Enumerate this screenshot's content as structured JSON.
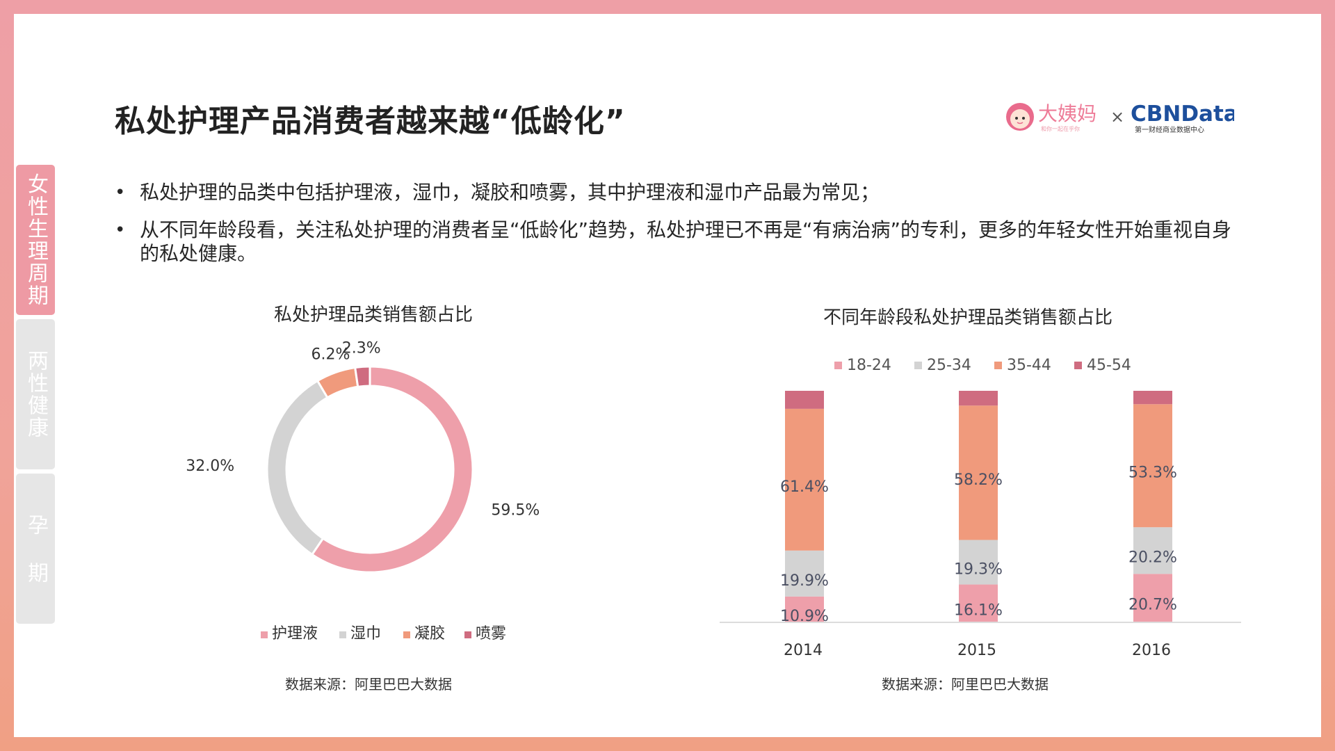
{
  "page": {
    "title": "私处护理产品消费者越来越“低龄化”",
    "logo": {
      "brand_left": "大姨妈",
      "tagline_left": "和你一起在乎你",
      "times": "×",
      "brand_right": "CBNData",
      "tagline_right": "第一财经商业数据中心"
    },
    "bullets": [
      "私处护理的品类中包括护理液，湿巾，凝胶和喷雾，其中护理液和湿巾产品最为常见；",
      "从不同年龄段看，关注私处护理的消费者呈“低龄化”趋势，私处护理已不再是“有病治病”的专利，更多的年轻女性开始重视自身的私处健康。"
    ],
    "bullet_marker": "•",
    "side_tabs": [
      {
        "label": "女性生理周期",
        "active": true
      },
      {
        "label": "两性健康",
        "active": false
      },
      {
        "label": "孕 期",
        "active": false
      }
    ],
    "colors": {
      "pink": "#ee9faa",
      "grey": "#d3d3d3",
      "orange": "#f09a7c",
      "rose": "#cf6c80"
    }
  },
  "chart_data": [
    {
      "type": "pie",
      "style": "donut",
      "title": "私处护理品类销售额占比",
      "labels": [
        "护理液",
        "湿巾",
        "凝胶",
        "喷雾"
      ],
      "values": [
        59.5,
        32.0,
        6.2,
        2.3
      ],
      "value_labels": [
        "59.5%",
        "32.0%",
        "6.2%",
        "2.3%"
      ],
      "colors": [
        "#ee9faa",
        "#d3d3d3",
        "#f09a7c",
        "#cf6c80"
      ],
      "legend_position": "bottom",
      "source": "数据来源：阿里巴巴大数据"
    },
    {
      "type": "bar",
      "stacked": true,
      "title": "不同年龄段私处护理品类销售额占比",
      "categories": [
        "2014",
        "2015",
        "2016"
      ],
      "series": [
        {
          "name": "18-24",
          "values": [
            10.9,
            16.1,
            20.7
          ],
          "labels": [
            "10.9%",
            "16.1%",
            "20.7%"
          ],
          "color": "#ee9faa"
        },
        {
          "name": "25-34",
          "values": [
            19.9,
            19.3,
            20.2
          ],
          "labels": [
            "19.9%",
            "19.3%",
            "20.2%"
          ],
          "color": "#d3d3d3"
        },
        {
          "name": "35-44",
          "values": [
            61.4,
            58.2,
            53.3
          ],
          "labels": [
            "61.4%",
            "58.2%",
            "53.3%"
          ],
          "color": "#f09a7c"
        },
        {
          "name": "45-54",
          "values": [
            7.8,
            6.4,
            5.8
          ],
          "labels": [],
          "color": "#cf6c80"
        }
      ],
      "ylim": [
        0,
        100
      ],
      "legend_position": "top",
      "grid": false,
      "source": "数据来源：阿里巴巴大数据"
    }
  ]
}
